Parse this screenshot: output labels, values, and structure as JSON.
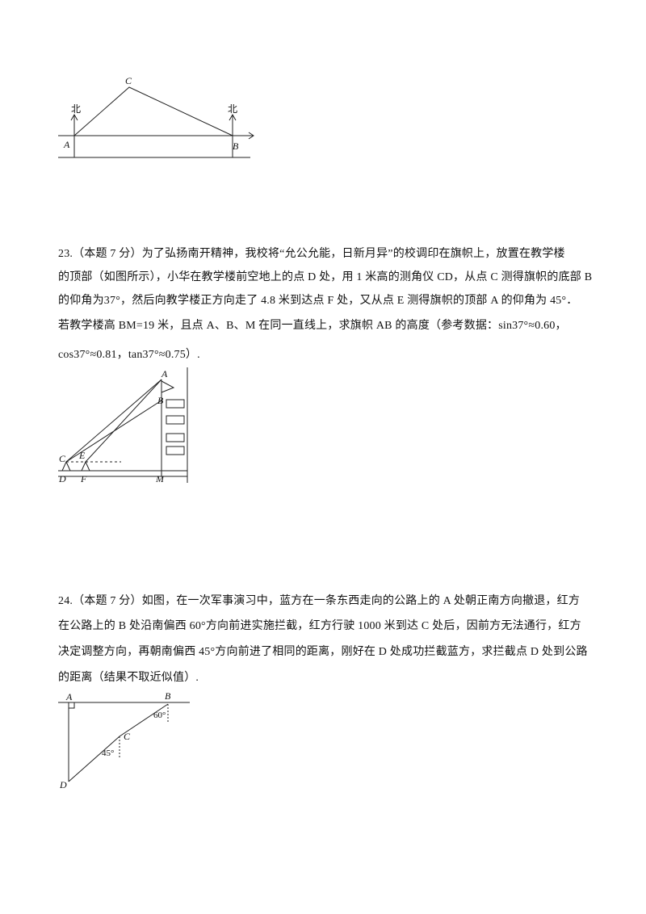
{
  "figure1": {
    "labels": [
      "C",
      "北",
      "北",
      "A",
      "B"
    ]
  },
  "problem23": {
    "lines": [
      "23.（本题 7 分）为了弘扬南开精神，我校将“允公允能，日新月异”的校调印在旗帜上，放置在教学楼",
      "的顶部（如图所示），小华在教学楼前空地上的点 D 处，用 1 米高的测角仪 CD，从点 C 测得旗帜的底部 B",
      "的仰角为37°，然后向教学楼正方向走了 4.8 米到达点 F 处，又从点 E 测得旗帜的顶部 A 的仰角为 45°．",
      "若教学楼高 BM=19 米，且点 A、B、M 在同一直线上，求旗帜 AB 的高度（参考数据：sin37°≈0.60，",
      "cos37°≈0.81，tan37°≈0.75）."
    ]
  },
  "figure2": {
    "labels": [
      "A",
      "B",
      "C",
      "E",
      "D",
      "F",
      "M"
    ]
  },
  "problem24": {
    "lines": [
      "24.（本题 7 分）如图，在一次军事演习中，蓝方在一条东西走向的公路上的 A 处朝正南方向撤退，红方",
      "在公路上的 B 处沿南偏西 60°方向前进实施拦截，红方行驶 1000 米到达 C 处后，因前方无法通行，红方",
      "决定调整方向，再朝南偏西 45°方向前进了相同的距离，刚好在 D 处成功拦截蓝方，求拦截点 D 处到公路",
      "的距离（结果不取近似值）."
    ]
  },
  "figure3": {
    "labels": [
      "A",
      "B",
      "60°",
      "C",
      "45°",
      "D"
    ]
  }
}
